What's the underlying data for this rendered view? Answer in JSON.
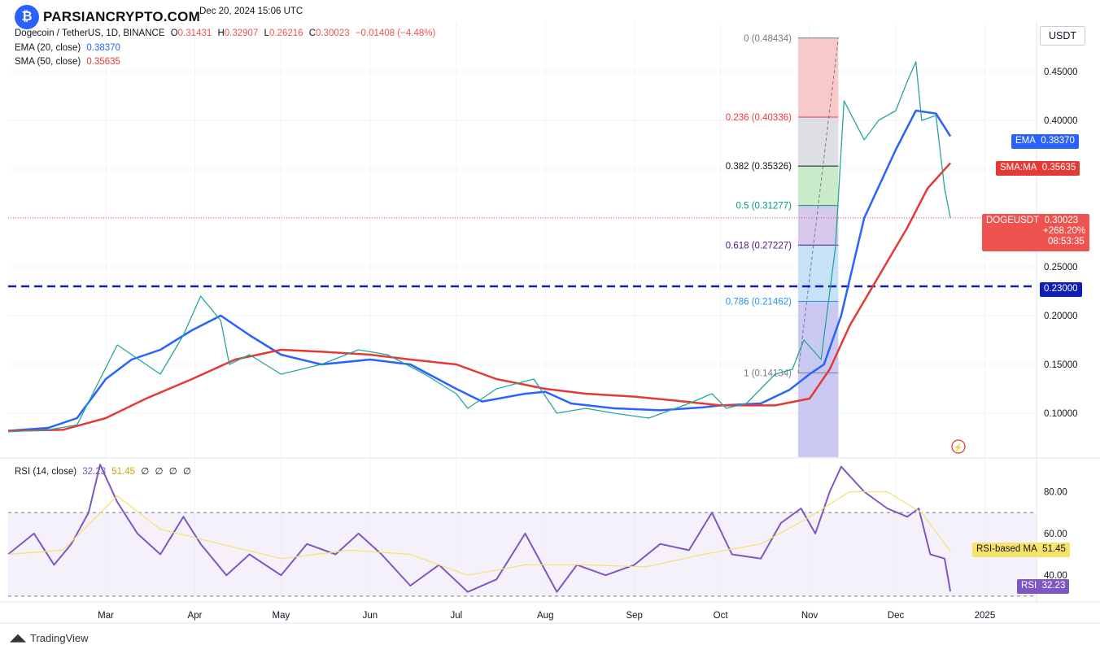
{
  "header": {
    "timestamp": "Dec 20, 2024 15:06 UTC",
    "symbol": "Dogecoin / TetherUS, 1D, BINANCE",
    "ohlc": {
      "o_label": "O",
      "o": "0.31431",
      "h_label": "H",
      "h": "0.32907",
      "l_label": "L",
      "l": "0.26216",
      "c_label": "C",
      "c": "0.30023",
      "change": "−0.01408 (−4.48%)"
    },
    "ema_label": "EMA (20, close)",
    "ema_value": "0.38370",
    "sma_label": "SMA (50, close)",
    "sma_value": "0.35635"
  },
  "watermark": {
    "text": "PARSIANCRYPTO.COM",
    "icon": "bitcoin-coin-icon"
  },
  "unit": "USDT",
  "colors": {
    "up": "#26a69a",
    "down": "#ef5350",
    "ema": "#2962ff",
    "sma": "#e53935",
    "rsi": "#7e57c2",
    "rsi_ma": "#f7e26b",
    "support": "#0d1fb8"
  },
  "chart_data": [
    {
      "type": "line",
      "title": "Dogecoin / TetherUS, 1D, BINANCE",
      "xlabel": "",
      "ylabel": "USDT",
      "ylim": [
        0.055,
        0.5
      ],
      "x_tick_labels": [
        "Mar",
        "Apr",
        "May",
        "Jun",
        "Jul",
        "Aug",
        "Sep",
        "Oct",
        "Nov",
        "Dec",
        "2025"
      ],
      "y_tick_labels": [
        "0.45000",
        "0.40000",
        "0.35000",
        "0.30000",
        "0.25000",
        "0.20000",
        "0.15000",
        "0.10000"
      ],
      "y_ticks": [
        0.45,
        0.4,
        0.35,
        0.3,
        0.25,
        0.2,
        0.15,
        0.1
      ],
      "x_tick_dates": [
        "2024-03-01",
        "2024-04-01",
        "2024-05-01",
        "2024-06-01",
        "2024-07-01",
        "2024-08-01",
        "2024-09-01",
        "2024-10-01",
        "2024-11-01",
        "2024-12-01",
        "2025-01-01"
      ],
      "x_range": [
        "2024-01-27",
        "2025-01-19"
      ],
      "series": [
        {
          "name": "EMA (20, close)",
          "x": [
            "2024-01-27",
            "2024-02-10",
            "2024-02-20",
            "2024-03-01",
            "2024-03-10",
            "2024-03-20",
            "2024-03-31",
            "2024-04-10",
            "2024-04-20",
            "2024-05-01",
            "2024-05-15",
            "2024-06-01",
            "2024-06-15",
            "2024-07-01",
            "2024-07-10",
            "2024-07-25",
            "2024-08-01",
            "2024-08-10",
            "2024-08-25",
            "2024-09-10",
            "2024-09-25",
            "2024-10-01",
            "2024-10-15",
            "2024-10-25",
            "2024-11-01",
            "2024-11-06",
            "2024-11-12",
            "2024-11-20",
            "2024-12-01",
            "2024-12-08",
            "2024-12-15",
            "2024-12-20"
          ],
          "values": [
            0.082,
            0.085,
            0.095,
            0.135,
            0.155,
            0.165,
            0.185,
            0.2,
            0.18,
            0.16,
            0.15,
            0.155,
            0.15,
            0.125,
            0.112,
            0.12,
            0.122,
            0.11,
            0.105,
            0.103,
            0.106,
            0.108,
            0.11,
            0.124,
            0.14,
            0.15,
            0.2,
            0.3,
            0.37,
            0.41,
            0.407,
            0.3837
          ]
        },
        {
          "name": "SMA (50, close)",
          "x": [
            "2024-01-27",
            "2024-02-15",
            "2024-03-01",
            "2024-03-15",
            "2024-03-31",
            "2024-04-15",
            "2024-05-01",
            "2024-05-15",
            "2024-06-01",
            "2024-06-15",
            "2024-07-01",
            "2024-07-15",
            "2024-08-01",
            "2024-08-15",
            "2024-09-01",
            "2024-09-15",
            "2024-10-01",
            "2024-10-20",
            "2024-11-01",
            "2024-11-08",
            "2024-11-15",
            "2024-11-25",
            "2024-12-05",
            "2024-12-12",
            "2024-12-20"
          ],
          "values": [
            0.082,
            0.083,
            0.095,
            0.115,
            0.135,
            0.155,
            0.165,
            0.163,
            0.16,
            0.155,
            0.15,
            0.135,
            0.125,
            0.12,
            0.117,
            0.113,
            0.108,
            0.108,
            0.115,
            0.145,
            0.19,
            0.24,
            0.29,
            0.33,
            0.35635
          ]
        },
        {
          "name": "DOGEUSDT",
          "x": [
            "2024-01-27",
            "2024-02-10",
            "2024-02-20",
            "2024-02-28",
            "2024-03-05",
            "2024-03-10",
            "2024-03-20",
            "2024-03-28",
            "2024-04-03",
            "2024-04-10",
            "2024-04-13",
            "2024-04-20",
            "2024-05-01",
            "2024-05-15",
            "2024-05-28",
            "2024-06-07",
            "2024-06-20",
            "2024-07-01",
            "2024-07-05",
            "2024-07-15",
            "2024-07-28",
            "2024-08-05",
            "2024-08-15",
            "2024-08-25",
            "2024-09-06",
            "2024-09-20",
            "2024-09-28",
            "2024-10-03",
            "2024-10-10",
            "2024-10-20",
            "2024-10-26",
            "2024-10-30",
            "2024-11-05",
            "2024-11-10",
            "2024-11-13",
            "2024-11-20",
            "2024-11-25",
            "2024-12-01",
            "2024-12-05",
            "2024-12-08",
            "2024-12-10",
            "2024-12-15",
            "2024-12-18",
            "2024-12-20"
          ],
          "values": [
            0.081,
            0.083,
            0.088,
            0.135,
            0.17,
            0.16,
            0.14,
            0.18,
            0.22,
            0.195,
            0.15,
            0.16,
            0.14,
            0.15,
            0.165,
            0.16,
            0.14,
            0.12,
            0.105,
            0.125,
            0.135,
            0.1,
            0.105,
            0.1,
            0.095,
            0.11,
            0.12,
            0.105,
            0.11,
            0.14,
            0.145,
            0.175,
            0.155,
            0.27,
            0.42,
            0.38,
            0.4,
            0.41,
            0.44,
            0.46,
            0.4,
            0.405,
            0.33,
            0.30023
          ]
        }
      ],
      "price_tags": {
        "ema": {
          "label": "EMA",
          "value": "0.38370"
        },
        "sma": {
          "label": "SMA:MA",
          "value": "0.35635"
        },
        "last": {
          "label": "DOGEUSDT",
          "value": "0.30023",
          "change": "+268.20%",
          "countdown": "08:53:35"
        },
        "support": {
          "value": "0.23000"
        }
      },
      "support_level": 0.23,
      "current_price": 0.30023,
      "fibonacci": [
        {
          "ratio": "0",
          "value": 0.48434,
          "label": "0 (0.48434)",
          "color": "#787b86"
        },
        {
          "ratio": "0.236",
          "value": 0.40336,
          "label": "0.236 (0.40336)",
          "color": "#f23645"
        },
        {
          "ratio": "0.382",
          "value": 0.35326,
          "label": "0.382 (0.35326)",
          "color": "#131722"
        },
        {
          "ratio": "0.5",
          "value": 0.31277,
          "label": "0.5 (0.31277)",
          "color": "#089981"
        },
        {
          "ratio": "0.618",
          "value": 0.27227,
          "label": "0.618 (0.27227)",
          "color": "#4a148c"
        },
        {
          "ratio": "0.786",
          "value": 0.21462,
          "label": "0.786 (0.21462)",
          "color": "#2196f3"
        },
        {
          "ratio": "1",
          "value": 0.14134,
          "label": "1 (0.14134)",
          "color": "#787b86"
        }
      ],
      "fib_zone_colors": [
        "#f5b7b7",
        "#d1d4dc",
        "#b7e4b7",
        "#c9b7e4",
        "#b3d7f5",
        "#b7b7f0"
      ],
      "fib_dates": [
        "2024-10-28",
        "2024-11-11"
      ],
      "grid": true
    },
    {
      "type": "line",
      "title": "RSI (14, close)",
      "legend_values": [
        "32.23",
        "51.45",
        "∅",
        "∅",
        "∅",
        "∅"
      ],
      "ylim": [
        28,
        95
      ],
      "y_tick_labels": [
        "80.00",
        "60.00",
        "40.00"
      ],
      "y_ticks": [
        80,
        60,
        40
      ],
      "bands": [
        70,
        30
      ],
      "series": [
        {
          "name": "RSI",
          "x": [
            "2024-01-27",
            "2024-02-05",
            "2024-02-12",
            "2024-02-18",
            "2024-02-24",
            "2024-02-28",
            "2024-03-05",
            "2024-03-12",
            "2024-03-20",
            "2024-03-28",
            "2024-04-03",
            "2024-04-12",
            "2024-04-20",
            "2024-05-01",
            "2024-05-10",
            "2024-05-20",
            "2024-05-28",
            "2024-06-05",
            "2024-06-15",
            "2024-06-25",
            "2024-07-05",
            "2024-07-15",
            "2024-07-25",
            "2024-08-05",
            "2024-08-12",
            "2024-08-22",
            "2024-09-01",
            "2024-09-10",
            "2024-09-20",
            "2024-09-28",
            "2024-10-05",
            "2024-10-15",
            "2024-10-22",
            "2024-10-29",
            "2024-11-03",
            "2024-11-08",
            "2024-11-12",
            "2024-11-20",
            "2024-11-28",
            "2024-12-05",
            "2024-12-09",
            "2024-12-13",
            "2024-12-18",
            "2024-12-20"
          ],
          "values": [
            50,
            60,
            45,
            55,
            70,
            93,
            75,
            60,
            50,
            68,
            55,
            40,
            50,
            40,
            55,
            50,
            60,
            50,
            35,
            45,
            32,
            38,
            60,
            32,
            45,
            40,
            45,
            55,
            52,
            70,
            50,
            48,
            65,
            72,
            60,
            80,
            92,
            80,
            72,
            68,
            72,
            50,
            48,
            32.23
          ]
        },
        {
          "name": "RSI-based MA",
          "x": [
            "2024-01-27",
            "2024-02-15",
            "2024-03-05",
            "2024-03-20",
            "2024-04-10",
            "2024-05-01",
            "2024-05-25",
            "2024-06-15",
            "2024-07-05",
            "2024-07-25",
            "2024-08-15",
            "2024-09-05",
            "2024-09-25",
            "2024-10-15",
            "2024-11-01",
            "2024-11-15",
            "2024-11-28",
            "2024-12-10",
            "2024-12-20"
          ],
          "values": [
            50,
            52,
            78,
            62,
            55,
            48,
            52,
            50,
            40,
            45,
            45,
            44,
            50,
            55,
            68,
            80,
            80,
            70,
            51.45
          ]
        }
      ],
      "price_tags": {
        "rsi_ma": {
          "label": "RSI-based MA",
          "value": "51.45"
        },
        "rsi": {
          "label": "RSI",
          "value": "32.23"
        }
      }
    }
  ],
  "footer": {
    "brand": "TradingView"
  }
}
